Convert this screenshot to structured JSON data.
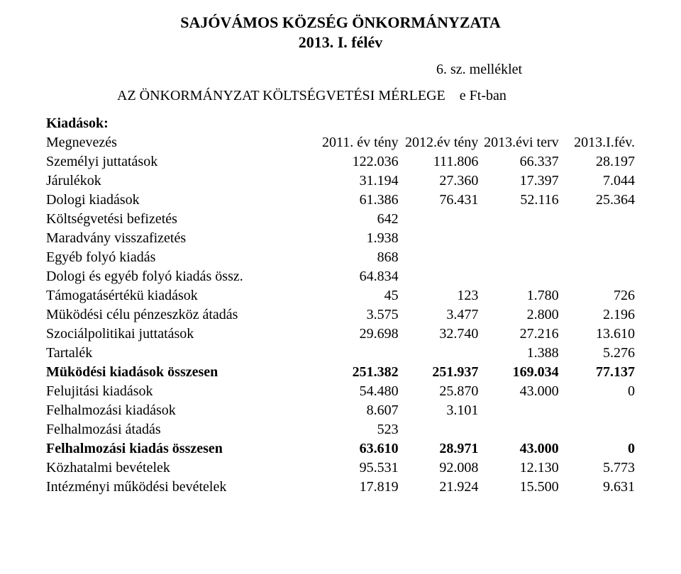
{
  "title_line1": "SAJÓVÁMOS KÖZSÉG ÖNKORMÁNYZATA",
  "title_line2": "2013. I. félév",
  "attachment": "6. sz. melléklet",
  "subtitle_left": "AZ  ÖNKORMÁNYZAT KÖLTSÉGVETÉSI MÉRLEGE",
  "subtitle_right": "e Ft-ban",
  "section_kiadasok": "Kiadások:",
  "header": {
    "label": "Megnevezés",
    "c0": "2011. év tény",
    "c1": "2012.év tény",
    "c2": "2013.évi terv",
    "c3": "2013.I.fév."
  },
  "rows": [
    {
      "label": "Személyi juttatások",
      "bold": false,
      "c": [
        "122.036",
        "111.806",
        "66.337",
        "28.197"
      ]
    },
    {
      "label": "Járulékok",
      "bold": false,
      "c": [
        "31.194",
        "27.360",
        "17.397",
        "7.044"
      ]
    },
    {
      "label": "Dologi kiadások",
      "bold": false,
      "c": [
        "61.386",
        "76.431",
        "52.116",
        "25.364"
      ]
    },
    {
      "label": "Költségvetési befizetés",
      "bold": false,
      "c": [
        "642",
        "",
        "",
        ""
      ]
    },
    {
      "label": "Maradvány visszafizetés",
      "bold": false,
      "c": [
        "1.938",
        "",
        "",
        ""
      ]
    },
    {
      "label": "Egyéb folyó kiadás",
      "bold": false,
      "c": [
        "868",
        "",
        "",
        ""
      ]
    },
    {
      "label": "Dologi és egyéb folyó kiadás össz.",
      "bold": false,
      "c": [
        "64.834",
        "",
        "",
        ""
      ]
    },
    {
      "label": "Támogatásértékü kiadások",
      "bold": false,
      "c": [
        "45",
        "123",
        "1.780",
        "726"
      ]
    },
    {
      "label": "Müködési célu pénzeszköz átadás",
      "bold": false,
      "c": [
        "3.575",
        "3.477",
        "2.800",
        "2.196"
      ]
    },
    {
      "label": "Szociálpolitikai juttatások",
      "bold": false,
      "c": [
        "29.698",
        "32.740",
        "27.216",
        "13.610"
      ]
    },
    {
      "label": "Tartalék",
      "bold": false,
      "c": [
        "",
        "",
        "1.388",
        "5.276"
      ]
    },
    {
      "label": "Müködési kiadások összesen",
      "bold": true,
      "c": [
        "251.382",
        "251.937",
        "169.034",
        "77.137"
      ]
    },
    {
      "label": "Felujitási kiadások",
      "bold": false,
      "c": [
        "54.480",
        "25.870",
        "43.000",
        "0"
      ]
    },
    {
      "label": "Felhalmozási kiadások",
      "bold": false,
      "c": [
        "8.607",
        "3.101",
        "",
        ""
      ]
    },
    {
      "label": "Felhalmozási átadás",
      "bold": false,
      "c": [
        "523",
        "",
        "",
        ""
      ]
    },
    {
      "label": "Felhalmozási kiadás összesen",
      "bold": true,
      "c": [
        "63.610",
        "28.971",
        "43.000",
        "0"
      ]
    },
    {
      "label": "Közhatalmi bevételek",
      "bold": false,
      "c": [
        "95.531",
        "92.008",
        "12.130",
        "5.773"
      ]
    },
    {
      "label": "Intézményi működési bevételek",
      "bold": false,
      "c": [
        "17.819",
        "21.924",
        "15.500",
        "9.631"
      ]
    }
  ]
}
